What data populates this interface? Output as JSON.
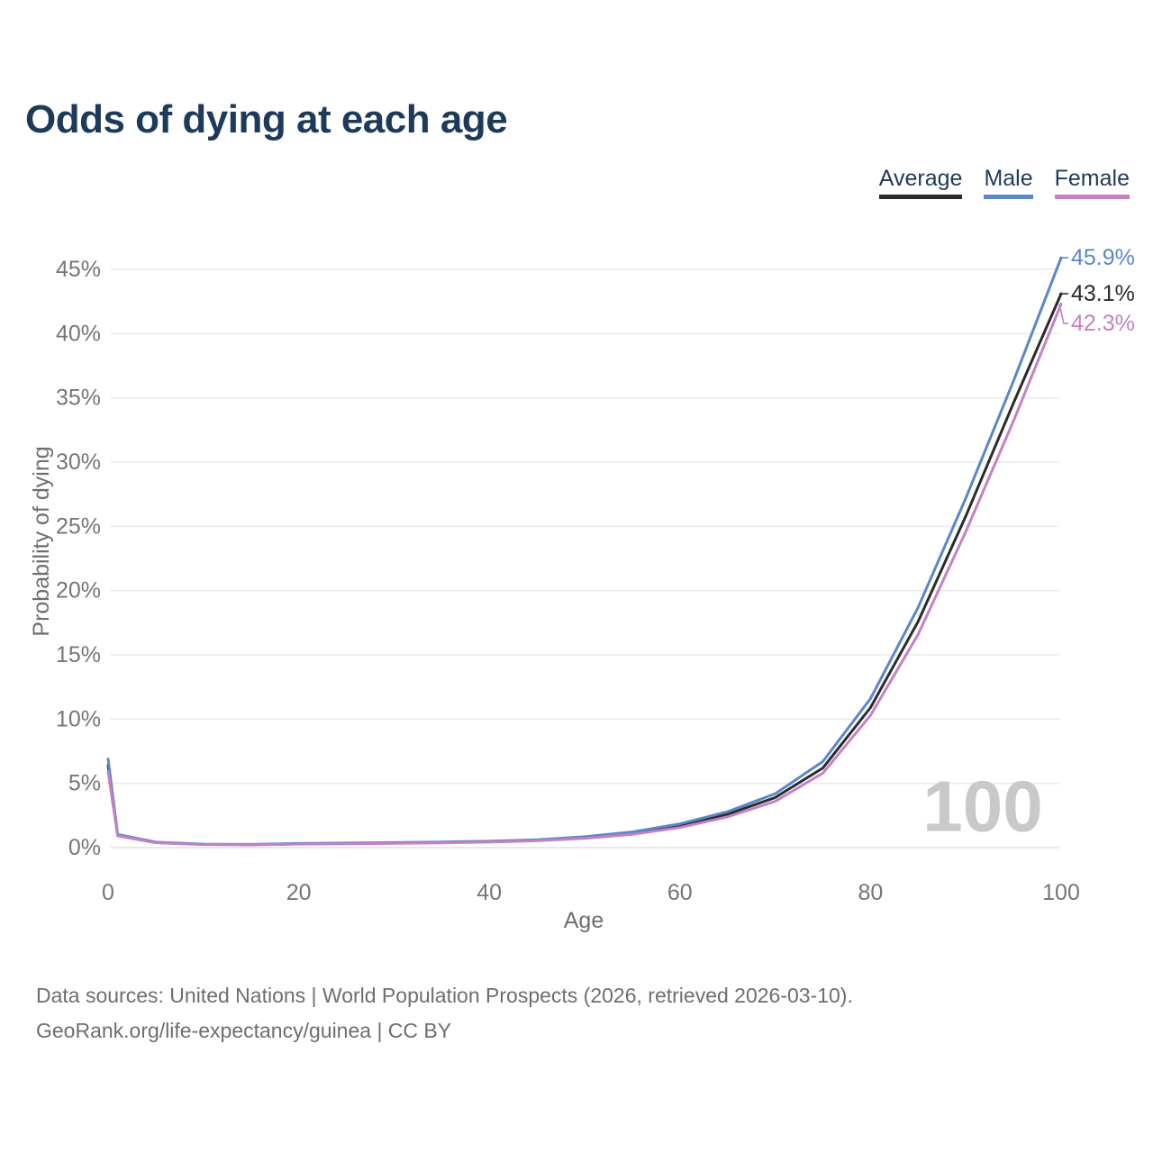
{
  "title": "Odds of dying at each age",
  "legend": {
    "items": [
      {
        "label": "Average",
        "color": "#2b2b2b"
      },
      {
        "label": "Male",
        "color": "#5b87c9"
      },
      {
        "label": "Female",
        "color": "#c482c4"
      }
    ]
  },
  "watermark": "100",
  "footer": {
    "line1": "Data sources: United Nations | World Population Prospects (2026, retrieved 2026-03-10).",
    "line2": "GeoRank.org/life-expectancy/guinea | CC BY"
  },
  "chart_data": {
    "type": "line",
    "title": "Odds of dying at each age",
    "xlabel": "Age",
    "ylabel": "Probability of dying",
    "xlim": [
      0,
      100
    ],
    "ylim": [
      0,
      45
    ],
    "x_ticks": [
      0,
      20,
      40,
      60,
      80,
      100
    ],
    "y_ticks": [
      0,
      5,
      10,
      15,
      20,
      25,
      30,
      35,
      40,
      45
    ],
    "y_tick_suffix": "%",
    "grid": true,
    "legend_position": "top-right",
    "x": [
      0,
      1,
      5,
      10,
      15,
      20,
      25,
      30,
      35,
      40,
      45,
      50,
      55,
      60,
      65,
      70,
      75,
      80,
      85,
      90,
      95,
      100
    ],
    "series": [
      {
        "name": "Average",
        "color": "#2b2b2b",
        "end_label": "43.1%",
        "values": [
          6.4,
          0.97,
          0.4,
          0.25,
          0.23,
          0.29,
          0.33,
          0.36,
          0.4,
          0.46,
          0.57,
          0.78,
          1.12,
          1.7,
          2.6,
          3.9,
          6.2,
          10.9,
          17.6,
          25.8,
          34.6,
          43.1
        ]
      },
      {
        "name": "Male",
        "color": "#5b87c9",
        "end_label": "45.9%",
        "values": [
          6.9,
          1.03,
          0.43,
          0.27,
          0.25,
          0.32,
          0.36,
          0.39,
          0.44,
          0.5,
          0.62,
          0.85,
          1.22,
          1.85,
          2.8,
          4.2,
          6.7,
          11.6,
          18.7,
          27.2,
          36.3,
          45.9
        ]
      },
      {
        "name": "Female",
        "color": "#c482c4",
        "end_label": "42.3%",
        "values": [
          5.9,
          0.92,
          0.38,
          0.24,
          0.22,
          0.27,
          0.3,
          0.33,
          0.37,
          0.43,
          0.53,
          0.72,
          1.03,
          1.56,
          2.4,
          3.6,
          5.8,
          10.3,
          16.6,
          24.6,
          33.2,
          42.3
        ]
      }
    ]
  }
}
